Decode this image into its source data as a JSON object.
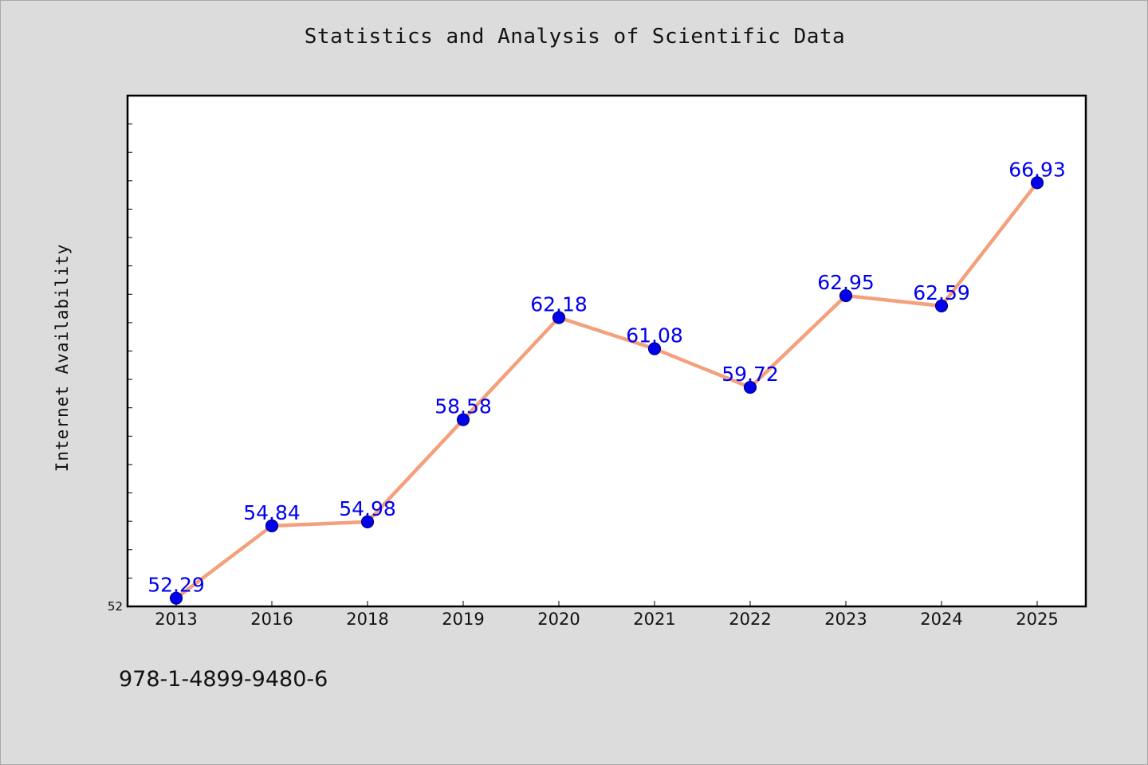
{
  "chart_data": {
    "type": "line",
    "title": "Statistics and Analysis of Scientific Data",
    "ylabel": "Internet Availability",
    "xlabel": "",
    "categories": [
      "2013",
      "2016",
      "2018",
      "2019",
      "2020",
      "2021",
      "2022",
      "2023",
      "2024",
      "2025"
    ],
    "series": [
      {
        "values": [
          52.29,
          54.84,
          54.98,
          58.58,
          62.18,
          61.08,
          59.72,
          62.95,
          62.59,
          66.93
        ]
      }
    ],
    "y_tick_labels": [
      "52"
    ],
    "ylim": [
      52,
      70
    ],
    "data_labels": [
      "52.29",
      "54.84",
      "54.98",
      "58.58",
      "62.18",
      "61.08",
      "59.72",
      "62.95",
      "62.59",
      "66.93"
    ],
    "grid": false,
    "colors": {
      "line": "#f4a07c",
      "marker": "#0000ee",
      "marker_edge": "#000080",
      "data_label": "#0000ee",
      "plot_background": "#ffffff",
      "figure_background": "#dcdcdc"
    }
  },
  "footer_note": "978-1-4899-9480-6"
}
